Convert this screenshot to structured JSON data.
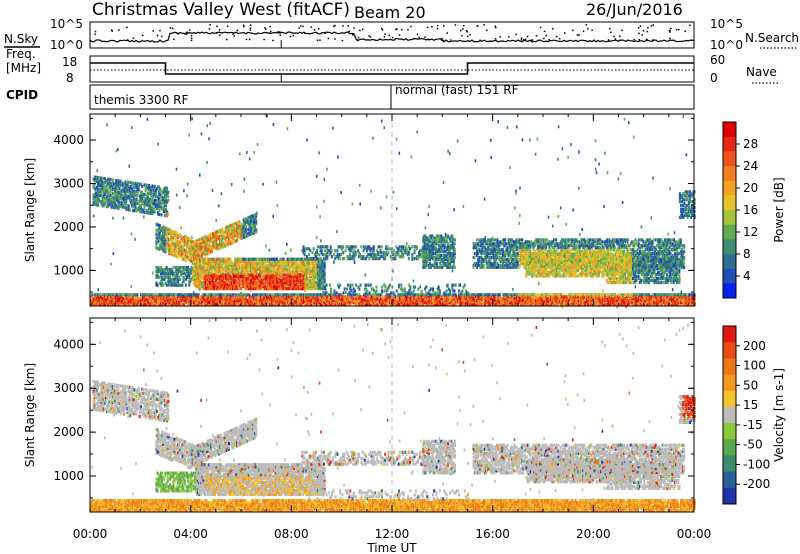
{
  "header": {
    "title": "Christmas Valley West (fitACF)",
    "beam": "Beam 20",
    "date": "26/Jun/2016"
  },
  "labels": {
    "nsky": "N.Sky",
    "nsearch": "N.Search",
    "freq_line1": "Freq.",
    "freq_line2": "[MHz]",
    "nave": "Nave",
    "cpid": "CPID",
    "time_axis": "Time UT"
  },
  "noise_axis": {
    "left_ticks": [
      "10^5",
      "10^0"
    ],
    "right_ticks": [
      "10^5",
      "10^0"
    ]
  },
  "freq_axis": {
    "left_ticks": [
      "18",
      "8"
    ],
    "right_ticks": [
      "60",
      "0"
    ]
  },
  "cpid_segments": [
    {
      "label": "themis 3300 RF",
      "start_hr": 0
    },
    {
      "label": "normal (fast) 151 RF",
      "start_hr": 12
    }
  ],
  "chart_data": [
    {
      "type": "heatmap",
      "name": "power",
      "ylabel": "Slant Range [km]",
      "xlabel": "Time UT",
      "xlim": [
        0,
        24
      ],
      "ylim": [
        180,
        4600
      ],
      "x_ticks": [
        "00:00",
        "04:00",
        "08:00",
        "12:00",
        "16:00",
        "20:00",
        "00:00"
      ],
      "y_ticks": [
        1000,
        2000,
        3000,
        4000
      ],
      "colorbar": {
        "label": "Power [dB]",
        "ticks": [
          4,
          8,
          12,
          16,
          20,
          24,
          28
        ],
        "colors": [
          "#0022ee",
          "#1f4fb5",
          "#2e6e8e",
          "#3e8e70",
          "#62ab52",
          "#a6c33e",
          "#e8c22a",
          "#f4a323",
          "#f27e1d",
          "#ee5418",
          "#e62a12",
          "#e00000"
        ]
      }
    },
    {
      "type": "heatmap",
      "name": "velocity",
      "ylabel": "Slant Range [km]",
      "xlabel": "Time UT",
      "xlim": [
        0,
        24
      ],
      "ylim": [
        180,
        4600
      ],
      "x_ticks": [
        "00:00",
        "04:00",
        "08:00",
        "12:00",
        "16:00",
        "20:00",
        "00:00"
      ],
      "y_ticks": [
        1000,
        2000,
        3000,
        4000
      ],
      "colorbar": {
        "label": "Velocity [m s-1]",
        "ticks": [
          "200",
          "100",
          "50",
          "15",
          "-15",
          "-50",
          "-100",
          "-200"
        ],
        "colors": [
          "#2233aa",
          "#2a6099",
          "#3d8a6d",
          "#5aa84e",
          "#8cc83c",
          "#bbbbbb",
          "#f4c22d",
          "#f39a1c",
          "#f07616",
          "#ea4b12",
          "#e01a10"
        ]
      }
    }
  ]
}
